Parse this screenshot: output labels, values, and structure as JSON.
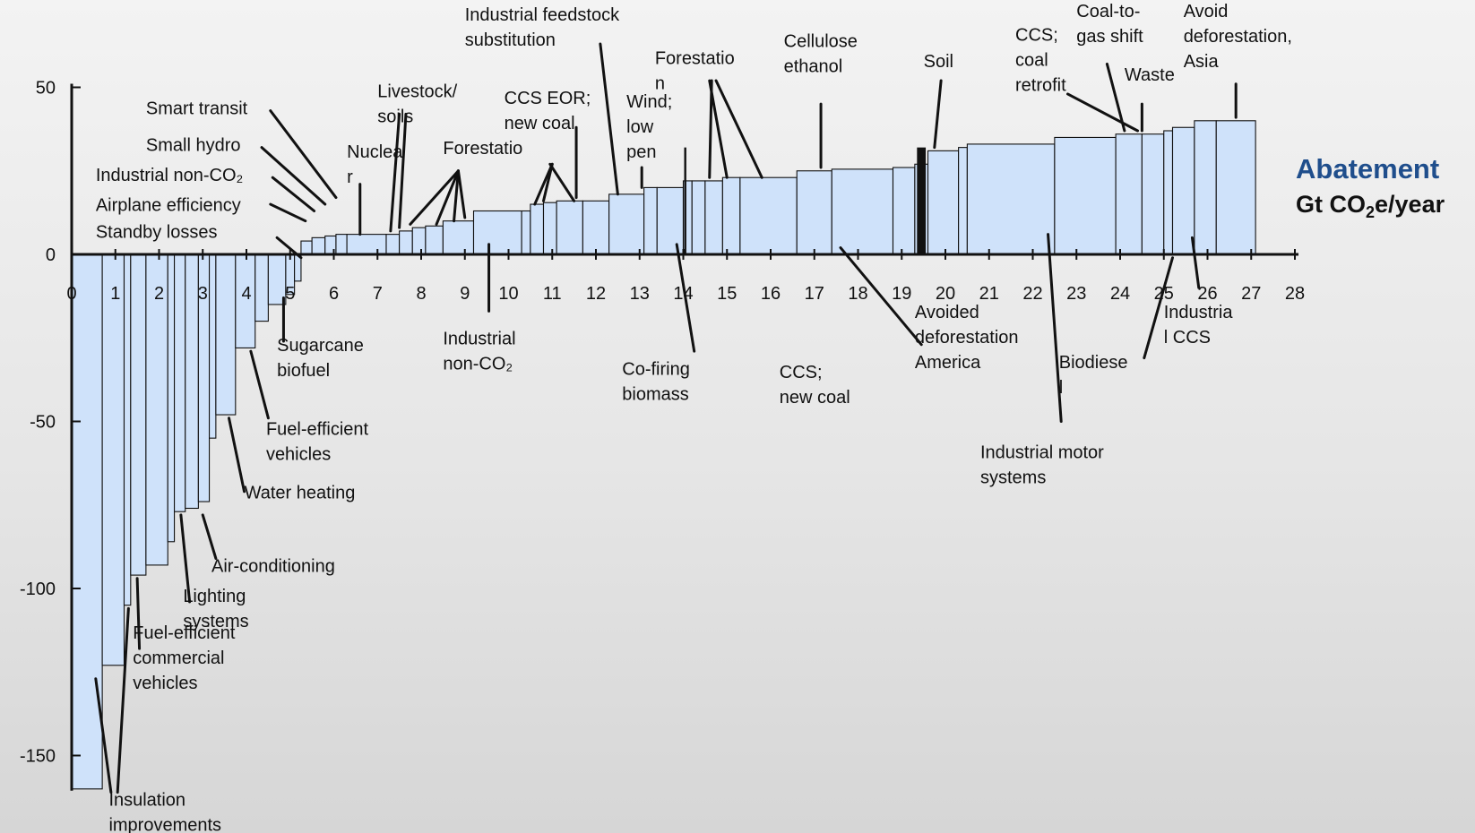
{
  "chart_data": {
    "type": "bar",
    "subtype": "marginal-abatement-cost-curve",
    "title": "",
    "xlabel": "",
    "ylabel": "",
    "units": {
      "primary": "Abatement",
      "secondary_prefix": "Gt CO",
      "secondary_subscript": "2",
      "secondary_suffix": "e/year"
    },
    "xlim": [
      0,
      28
    ],
    "ylim": [
      -160,
      50
    ],
    "x_ticks": [
      0,
      1,
      2,
      3,
      4,
      5,
      6,
      7,
      8,
      9,
      10,
      11,
      12,
      13,
      14,
      15,
      16,
      17,
      18,
      19,
      20,
      21,
      22,
      23,
      24,
      25,
      26,
      27,
      28
    ],
    "x_tick_labels": [
      "0",
      "1",
      "2",
      "3",
      "4",
      "5",
      "6",
      "7",
      "8",
      "9",
      "10",
      "11",
      "12",
      "13",
      "14",
      "15",
      "16",
      "17",
      "18",
      "19",
      "20",
      "21",
      "22",
      "23",
      "24",
      "25",
      "26",
      "27",
      "28"
    ],
    "y_ticks": [
      50,
      0,
      -50,
      -100,
      -150
    ],
    "y_tick_labels": [
      "50",
      "0",
      "-50",
      "-100",
      "-150"
    ],
    "grid": false,
    "legend": "none",
    "bars": [
      {
        "x0": 0.0,
        "x1": 0.7,
        "value": -160
      },
      {
        "x0": 0.7,
        "x1": 1.2,
        "value": -123
      },
      {
        "x0": 1.2,
        "x1": 1.35,
        "value": -105
      },
      {
        "x0": 1.35,
        "x1": 1.7,
        "value": -96
      },
      {
        "x0": 1.7,
        "x1": 2.2,
        "value": -93
      },
      {
        "x0": 2.2,
        "x1": 2.35,
        "value": -86
      },
      {
        "x0": 2.35,
        "x1": 2.6,
        "value": -77
      },
      {
        "x0": 2.6,
        "x1": 2.9,
        "value": -76
      },
      {
        "x0": 2.9,
        "x1": 3.15,
        "value": -74
      },
      {
        "x0": 3.15,
        "x1": 3.3,
        "value": -55
      },
      {
        "x0": 3.3,
        "x1": 3.75,
        "value": -48
      },
      {
        "x0": 3.75,
        "x1": 4.2,
        "value": -28
      },
      {
        "x0": 4.2,
        "x1": 4.5,
        "value": -20
      },
      {
        "x0": 4.5,
        "x1": 4.9,
        "value": -15
      },
      {
        "x0": 4.9,
        "x1": 5.1,
        "value": -12
      },
      {
        "x0": 5.1,
        "x1": 5.25,
        "value": -8
      },
      {
        "x0": 5.25,
        "x1": 5.5,
        "value": 4
      },
      {
        "x0": 5.5,
        "x1": 5.8,
        "value": 5
      },
      {
        "x0": 5.8,
        "x1": 6.05,
        "value": 5.5
      },
      {
        "x0": 6.05,
        "x1": 6.3,
        "value": 6
      },
      {
        "x0": 6.3,
        "x1": 7.2,
        "value": 6
      },
      {
        "x0": 7.2,
        "x1": 7.5,
        "value": 6
      },
      {
        "x0": 7.5,
        "x1": 7.8,
        "value": 7
      },
      {
        "x0": 7.8,
        "x1": 8.1,
        "value": 8
      },
      {
        "x0": 8.1,
        "x1": 8.5,
        "value": 8.5
      },
      {
        "x0": 8.5,
        "x1": 9.2,
        "value": 10
      },
      {
        "x0": 9.2,
        "x1": 10.3,
        "value": 13
      },
      {
        "x0": 10.3,
        "x1": 10.5,
        "value": 13
      },
      {
        "x0": 10.5,
        "x1": 10.8,
        "value": 15
      },
      {
        "x0": 10.8,
        "x1": 11.1,
        "value": 15.5
      },
      {
        "x0": 11.1,
        "x1": 11.7,
        "value": 16
      },
      {
        "x0": 11.7,
        "x1": 12.3,
        "value": 16
      },
      {
        "x0": 12.3,
        "x1": 13.1,
        "value": 18
      },
      {
        "x0": 13.1,
        "x1": 13.4,
        "value": 20
      },
      {
        "x0": 13.4,
        "x1": 14.0,
        "value": 20
      },
      {
        "x0": 14.0,
        "x1": 14.2,
        "value": 22
      },
      {
        "x0": 14.2,
        "x1": 14.5,
        "value": 22
      },
      {
        "x0": 14.5,
        "x1": 14.9,
        "value": 22
      },
      {
        "x0": 14.9,
        "x1": 15.3,
        "value": 23
      },
      {
        "x0": 15.3,
        "x1": 16.6,
        "value": 23
      },
      {
        "x0": 16.6,
        "x1": 17.4,
        "value": 25
      },
      {
        "x0": 17.4,
        "x1": 18.8,
        "value": 25.5
      },
      {
        "x0": 18.8,
        "x1": 19.3,
        "value": 26
      },
      {
        "x0": 19.3,
        "x1": 19.6,
        "value": 27
      },
      {
        "x0": 19.6,
        "x1": 20.3,
        "value": 31
      },
      {
        "x0": 20.3,
        "x1": 20.5,
        "value": 32
      },
      {
        "x0": 20.5,
        "x1": 22.5,
        "value": 33
      },
      {
        "x0": 22.5,
        "x1": 23.9,
        "value": 35
      },
      {
        "x0": 23.9,
        "x1": 24.5,
        "value": 36
      },
      {
        "x0": 24.5,
        "x1": 25.0,
        "value": 36
      },
      {
        "x0": 25.0,
        "x1": 25.2,
        "value": 37
      },
      {
        "x0": 25.2,
        "x1": 25.7,
        "value": 38
      },
      {
        "x0": 25.7,
        "x1": 26.2,
        "value": 40
      },
      {
        "x0": 26.2,
        "x1": 27.1,
        "value": 40
      }
    ],
    "annotations": [
      {
        "id": "insulation",
        "lines": [
          "Insulation",
          "improvements"
        ],
        "tx": 0.85,
        "ty": -165,
        "leaders": [
          [
            0.9,
            -161,
            0.55,
            -127
          ],
          [
            1.05,
            -161,
            1.3,
            -106
          ]
        ]
      },
      {
        "id": "fuel-efficient-commercial",
        "lines": [
          "Fuel-efficient",
          "commercial",
          "vehicles"
        ],
        "tx": 1.4,
        "ty": -115,
        "leaders": [
          [
            1.55,
            -118,
            1.5,
            -97
          ]
        ]
      },
      {
        "id": "lighting",
        "lines": [
          "Lighting",
          "systems"
        ],
        "tx": 2.55,
        "ty": -104,
        "leaders": [
          [
            2.7,
            -104,
            2.5,
            -78
          ]
        ]
      },
      {
        "id": "air-conditioning",
        "lines": [
          "Air-conditioning"
        ],
        "tx": 3.2,
        "ty": -95,
        "leaders": [
          [
            3.3,
            -91,
            3.0,
            -78
          ]
        ]
      },
      {
        "id": "water-heating",
        "lines": [
          "Water heating"
        ],
        "tx": 3.95,
        "ty": -73,
        "leaders": [
          [
            3.95,
            -71,
            3.6,
            -49
          ]
        ]
      },
      {
        "id": "fuel-efficient-vehicles",
        "lines": [
          "Fuel-efficient",
          "vehicles"
        ],
        "tx": 4.45,
        "ty": -54,
        "leaders": [
          [
            4.5,
            -49,
            4.1,
            -29
          ]
        ]
      },
      {
        "id": "sugarcane",
        "lines": [
          "Sugarcane",
          "biofuel"
        ],
        "tx": 4.7,
        "ty": -29,
        "leaders": [
          [
            4.85,
            -26,
            4.85,
            -13
          ]
        ]
      },
      {
        "id": "standby-losses",
        "lines": [
          "Standby losses"
        ],
        "tx": 0.55,
        "ty": 5,
        "leaders": [
          [
            4.7,
            5,
            5.25,
            -1
          ]
        ]
      },
      {
        "id": "airplane",
        "lines": [
          "Airplane efficiency"
        ],
        "tx": 0.55,
        "ty": 13,
        "leaders": [
          [
            4.55,
            15,
            5.35,
            10
          ]
        ]
      },
      {
        "id": "industrial-non-co2-a",
        "lines": [
          "Industrial non-CO₂"
        ],
        "tx": 0.55,
        "ty": 22,
        "leaders": [
          [
            4.6,
            23,
            5.55,
            13
          ]
        ]
      },
      {
        "id": "small-hydro",
        "lines": [
          "Small hydro"
        ],
        "tx": 1.7,
        "ty": 31,
        "leaders": [
          [
            4.35,
            32,
            5.8,
            15
          ]
        ]
      },
      {
        "id": "smart-transit",
        "lines": [
          "Smart transit"
        ],
        "tx": 1.7,
        "ty": 42,
        "leaders": [
          [
            4.55,
            43,
            6.05,
            17
          ]
        ]
      },
      {
        "id": "nuclear",
        "lines": [
          "Nuclea",
          "r"
        ],
        "tx": 6.3,
        "ty": 29,
        "leaders": [
          [
            6.6,
            21,
            6.6,
            6
          ]
        ]
      },
      {
        "id": "livestock",
        "lines": [
          "Livestock/",
          "soils"
        ],
        "tx": 7.0,
        "ty": 47,
        "leaders": [
          [
            7.5,
            42,
            7.3,
            7
          ],
          [
            7.65,
            42,
            7.5,
            8
          ]
        ]
      },
      {
        "id": "forestation-a",
        "lines": [
          "Forestatio"
        ],
        "tx": 8.5,
        "ty": 30,
        "leaders": [
          [
            8.85,
            25,
            7.75,
            9
          ],
          [
            8.85,
            25,
            8.35,
            9
          ],
          [
            8.85,
            25,
            8.75,
            10
          ],
          [
            8.85,
            25,
            9.0,
            11
          ]
        ]
      },
      {
        "id": "ccs-eor",
        "lines": [
          "CCS EOR;",
          "new coal"
        ],
        "tx": 9.9,
        "ty": 45,
        "leaders": [
          [
            11.55,
            38,
            11.55,
            17
          ]
        ]
      },
      {
        "id": "industrial-feedstock",
        "lines": [
          "Industrial feedstock",
          "substitution"
        ],
        "tx": 9.0,
        "ty": 70,
        "leaders": [
          [
            12.1,
            63,
            12.5,
            18
          ]
        ]
      },
      {
        "id": "forestation-b-left",
        "lines": [],
        "tx": 0,
        "ty": 0,
        "leaders": [
          [
            11.0,
            27,
            10.6,
            15
          ],
          [
            11.0,
            27,
            10.8,
            16
          ]
        ]
      },
      {
        "id": "forestation-b-right",
        "lines": [],
        "tx": 0,
        "ty": 0,
        "leaders": [
          [
            10.95,
            27,
            11.5,
            16
          ]
        ]
      },
      {
        "id": "wind",
        "lines": [
          "Wind;",
          "low",
          "pen"
        ],
        "tx": 12.7,
        "ty": 44,
        "leaders": [
          [
            13.05,
            26,
            13.05,
            20
          ]
        ]
      },
      {
        "id": "forestation-c",
        "lines": [
          "Forestatio",
          "n"
        ],
        "tx": 13.35,
        "ty": 57,
        "leaders": [
          [
            14.6,
            52,
            15.0,
            23
          ],
          [
            14.65,
            52,
            14.6,
            23
          ],
          [
            14.75,
            52,
            15.8,
            23
          ]
        ]
      },
      {
        "id": "cellulose",
        "lines": [
          "Cellulose",
          "ethanol"
        ],
        "tx": 16.3,
        "ty": 62,
        "leaders": [
          [
            17.15,
            45,
            17.15,
            26
          ]
        ]
      },
      {
        "id": "soil",
        "lines": [
          "Soil"
        ],
        "tx": 19.5,
        "ty": 56,
        "leaders": [
          [
            19.9,
            52,
            19.75,
            32
          ]
        ]
      },
      {
        "id": "ccs-coal-retrofit",
        "lines": [
          "CCS;",
          "coal",
          "retrofit"
        ],
        "tx": 21.6,
        "ty": 64,
        "leaders": [
          [
            22.8,
            48,
            24.4,
            37
          ]
        ]
      },
      {
        "id": "coal-to-gas",
        "lines": [
          "Coal-to-",
          "gas shift"
        ],
        "tx": 23.0,
        "ty": 71,
        "leaders": [
          [
            23.7,
            57,
            24.1,
            37
          ]
        ]
      },
      {
        "id": "waste",
        "lines": [
          "Waste"
        ],
        "tx": 24.1,
        "ty": 52,
        "leaders": [
          [
            24.5,
            45,
            24.5,
            37
          ]
        ]
      },
      {
        "id": "avoid-asia",
        "lines": [
          "Avoid",
          "deforestation,",
          "Asia"
        ],
        "tx": 25.45,
        "ty": 71,
        "leaders": [
          [
            26.65,
            51,
            26.65,
            41
          ]
        ]
      },
      {
        "id": "industrial-non-co2-b",
        "lines": [
          "Industrial",
          "non-CO₂"
        ],
        "tx": 8.5,
        "ty": -27,
        "leaders": [
          [
            9.55,
            -17,
            9.55,
            3
          ]
        ]
      },
      {
        "id": "co-firing",
        "lines": [
          "Co-firing",
          "biomass"
        ],
        "tx": 12.6,
        "ty": -36,
        "leaders": [
          [
            14.25,
            -29,
            13.85,
            3
          ]
        ]
      },
      {
        "id": "ccs-new-coal",
        "lines": [
          "CCS;",
          "new coal"
        ],
        "tx": 16.2,
        "ty": -37,
        "leaders": [
          [
            19.45,
            -27,
            17.6,
            2
          ]
        ]
      },
      {
        "id": "avoided-america",
        "lines": [
          "Avoided",
          "deforestation",
          "America"
        ],
        "tx": 19.3,
        "ty": -19,
        "leaders": []
      },
      {
        "id": "industrial-motor",
        "lines": [
          "Industrial motor",
          "systems"
        ],
        "tx": 20.8,
        "ty": -61,
        "leaders": [
          [
            22.65,
            -50,
            22.35,
            6
          ]
        ]
      },
      {
        "id": "biodiesel",
        "lines": [
          "Biodiese",
          "l"
        ],
        "tx": 22.6,
        "ty": -34,
        "leaders": [
          [
            24.55,
            -31,
            25.2,
            -1
          ]
        ]
      },
      {
        "id": "industrial-ccs",
        "lines": [
          "Industria",
          "l CCS"
        ],
        "tx": 25.0,
        "ty": -19,
        "leaders": [
          [
            25.8,
            -10,
            25.65,
            5
          ]
        ]
      }
    ],
    "annotation_black_bars": [
      {
        "x0": 14.02,
        "x1": 14.07
      },
      {
        "x0": 19.35,
        "x1": 19.55
      }
    ]
  }
}
